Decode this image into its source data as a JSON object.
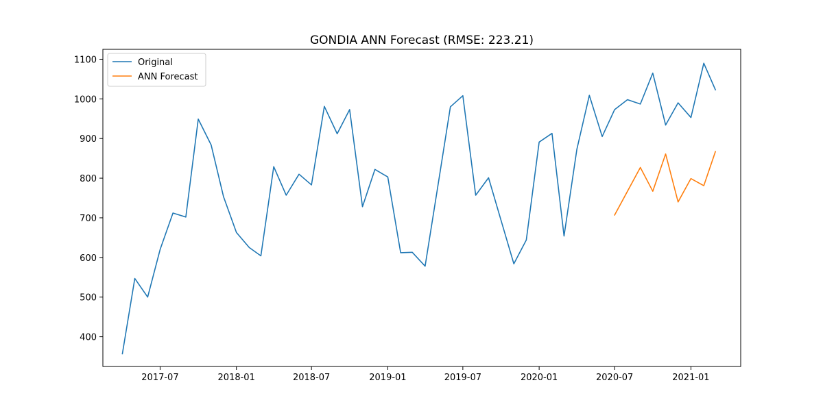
{
  "chart_data": {
    "type": "line",
    "title": "GONDIA ANN Forecast (RMSE: 223.21)",
    "xlabel": "",
    "ylabel": "",
    "x_ticks": [
      "2017-07",
      "2018-01",
      "2018-07",
      "2019-01",
      "2019-07",
      "2020-01",
      "2020-07",
      "2021-01"
    ],
    "y_ticks": [
      "400",
      "500",
      "600",
      "700",
      "800",
      "900",
      "1000",
      "1100"
    ],
    "ylim": [
      325,
      1125
    ],
    "xlim": [
      "2017-02-13",
      "2021-05-01"
    ],
    "grid": false,
    "legend_position": "top-left",
    "series": [
      {
        "name": "Original",
        "color": "#1f77b4",
        "x": [
          "2017-04-01",
          "2017-05-01",
          "2017-06-01",
          "2017-07-01",
          "2017-08-01",
          "2017-09-01",
          "2017-10-01",
          "2017-11-01",
          "2017-12-01",
          "2018-01-01",
          "2018-02-01",
          "2018-03-01",
          "2018-04-01",
          "2018-05-01",
          "2018-06-01",
          "2018-07-01",
          "2018-08-01",
          "2018-09-01",
          "2018-10-01",
          "2018-11-01",
          "2018-12-01",
          "2019-01-01",
          "2019-02-01",
          "2019-03-01",
          "2019-04-01",
          "2019-05-01",
          "2019-06-01",
          "2019-07-01",
          "2019-08-01",
          "2019-09-01",
          "2019-10-01",
          "2019-11-01",
          "2019-12-01",
          "2020-01-01",
          "2020-02-01",
          "2020-03-01",
          "2020-04-01",
          "2020-05-01",
          "2020-06-01",
          "2020-07-01",
          "2020-08-01",
          "2020-09-01",
          "2020-10-01",
          "2020-11-01",
          "2020-12-01",
          "2021-01-01",
          "2021-02-01",
          "2021-03-01"
        ],
        "values": [
          357,
          547,
          500,
          620,
          712,
          702,
          949,
          884,
          753,
          663,
          625,
          604,
          829,
          757,
          810,
          783,
          981,
          912,
          973,
          728,
          822,
          803,
          612,
          613,
          578,
          775,
          980,
          1008,
          757,
          801,
          694,
          584,
          644,
          891,
          913,
          654,
          873,
          1009,
          905,
          973,
          998,
          987,
          1065,
          934,
          990,
          953,
          1090,
          1023
        ]
      },
      {
        "name": "ANN Forecast",
        "color": "#ff7f0e",
        "x": [
          "2020-07-01",
          "2020-08-01",
          "2020-09-01",
          "2020-10-01",
          "2020-11-01",
          "2020-12-01",
          "2021-01-01",
          "2021-02-01",
          "2021-03-01"
        ],
        "values": [
          707,
          767,
          827,
          767,
          861,
          740,
          799,
          781,
          867
        ]
      }
    ]
  }
}
